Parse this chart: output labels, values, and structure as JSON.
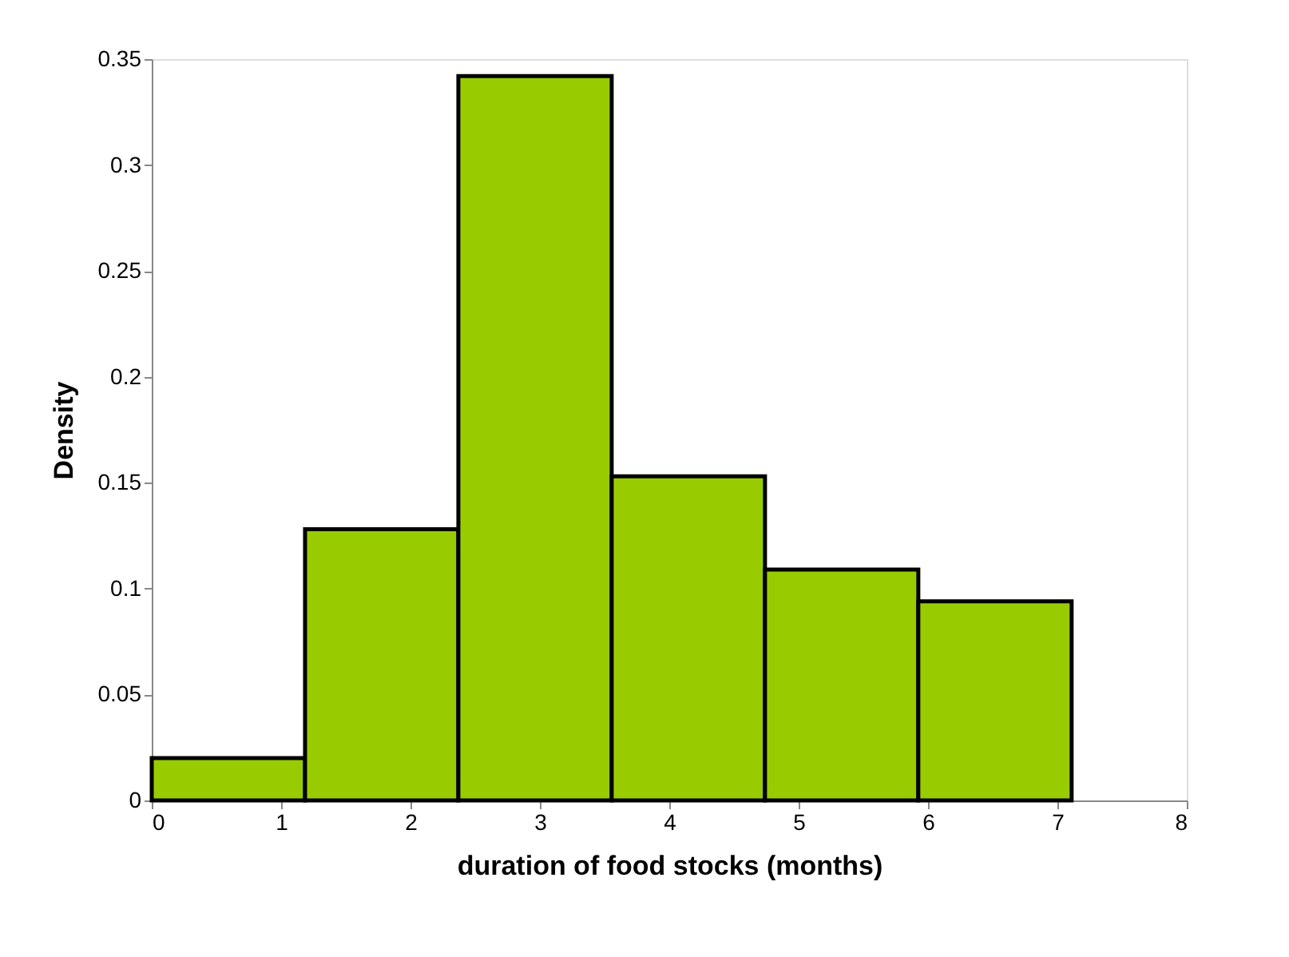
{
  "chart_data": {
    "type": "histogram",
    "xlabel": "duration of food  stocks (months)",
    "ylabel": "Density",
    "bins": [
      0,
      1.185,
      2.37,
      3.555,
      4.74,
      5.925,
      7.11
    ],
    "values": [
      0.02,
      0.128,
      0.342,
      0.153,
      0.109,
      0.094
    ],
    "color": "#99cc00",
    "xlim": [
      0,
      8
    ],
    "xticks": [
      0,
      1,
      2,
      3,
      4,
      5,
      6,
      7,
      8
    ],
    "ylim": [
      0,
      0.35
    ],
    "yticks": [
      0,
      0.05,
      0.1,
      0.15,
      0.2,
      0.25,
      0.3,
      0.35
    ],
    "grid": false
  }
}
